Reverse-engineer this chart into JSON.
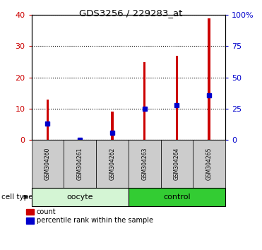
{
  "title": "GDS3256 / 229283_at",
  "categories": [
    "GSM304260",
    "GSM304261",
    "GSM304262",
    "GSM304263",
    "GSM304264",
    "GSM304265"
  ],
  "red_values": [
    13,
    0,
    9,
    25,
    27,
    39
  ],
  "blue_percentiles": [
    13,
    0,
    6,
    25,
    28,
    36
  ],
  "ylim_left": [
    0,
    40
  ],
  "ylim_right": [
    0,
    100
  ],
  "yticks_left": [
    0,
    10,
    20,
    30,
    40
  ],
  "yticks_right": [
    0,
    25,
    50,
    75,
    100
  ],
  "ytick_labels_right": [
    "0",
    "25",
    "50",
    "75",
    "100%"
  ],
  "group_labels": [
    "oocyte",
    "control"
  ],
  "group_ranges": [
    [
      0,
      3
    ],
    [
      3,
      6
    ]
  ],
  "group_colors_light": [
    "#d4f5d4",
    "#66ee66"
  ],
  "group_colors_dark": [
    "#d4f5d4",
    "#33cc33"
  ],
  "bar_color": "#cc0000",
  "blue_color": "#0000cc",
  "tick_color_left": "#cc0000",
  "tick_color_right": "#0000cc",
  "legend_items": [
    "count",
    "percentile rank within the sample"
  ],
  "cell_type_label": "cell type",
  "bar_width": 0.08,
  "background_color": "#ffffff"
}
